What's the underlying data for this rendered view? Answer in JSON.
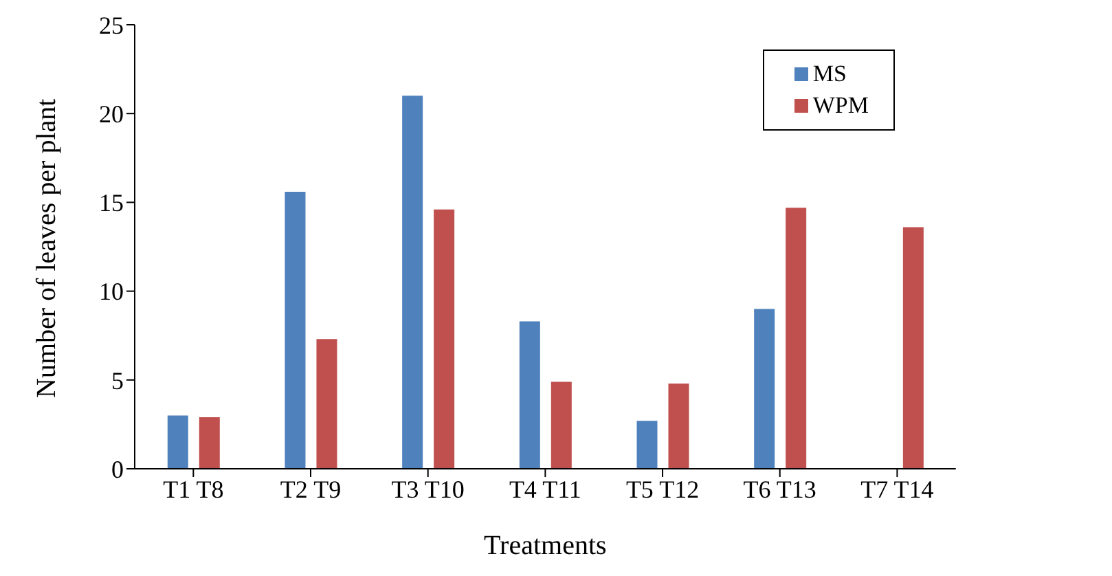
{
  "chart_data": {
    "type": "bar",
    "xlabel": "Treatments",
    "ylabel": "Number of leaves per plant",
    "categories": [
      "T1 T8",
      "T2 T9",
      "T3 T10",
      "T4 T11",
      "T5 T12",
      "T6 T13",
      "T7 T14"
    ],
    "series": [
      {
        "name": "MS",
        "color": "#4f81bd",
        "values": [
          3.0,
          15.6,
          21.0,
          8.3,
          2.7,
          9.0,
          0
        ]
      },
      {
        "name": "WPM",
        "color": "#c0504d",
        "values": [
          2.9,
          7.3,
          14.6,
          4.9,
          4.8,
          14.7,
          13.6
        ]
      }
    ],
    "ylim": [
      0,
      25
    ],
    "yticks": [
      0,
      5,
      10,
      15,
      20,
      25
    ],
    "grid": false,
    "legend": "top right"
  }
}
